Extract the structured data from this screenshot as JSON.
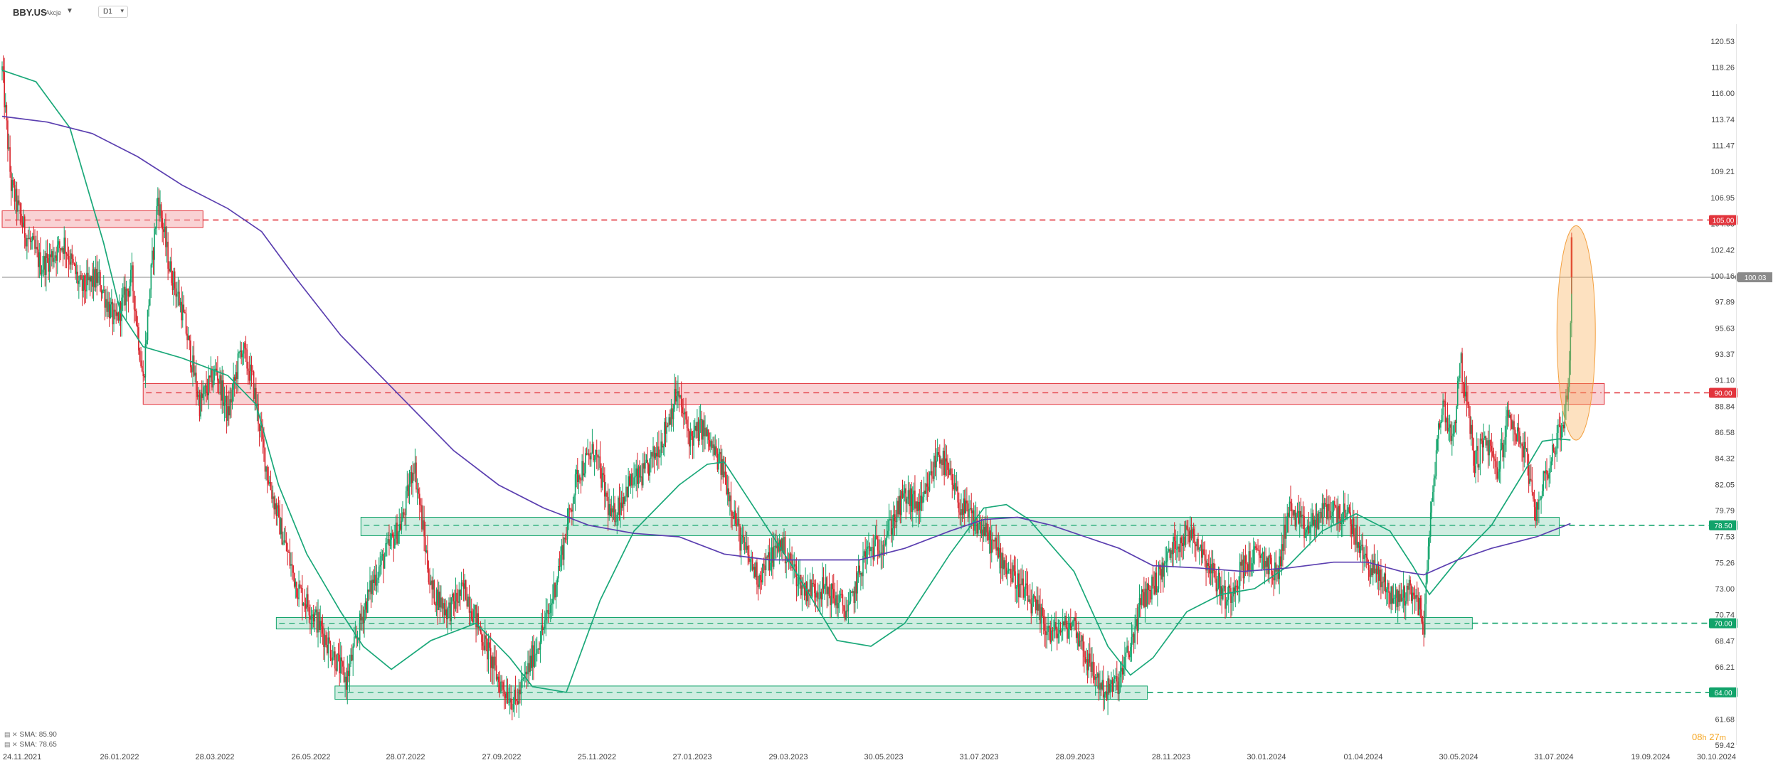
{
  "header": {
    "symbol": "BBY.US",
    "market": "Akcje",
    "timeframe": "D1"
  },
  "indicators": [
    {
      "name": "SMA",
      "value": "85.90",
      "color": "#1aa879"
    },
    {
      "name": "SMA",
      "value": "78.65",
      "color": "#5b3fb0"
    }
  ],
  "timer": {
    "hours": "08",
    "h_unit": "h",
    "minutes": "27",
    "m_unit": "m"
  },
  "chart_data": {
    "type": "candlestick",
    "y_ticks": [
      "120.53",
      "118.26",
      "116.00",
      "113.74",
      "111.47",
      "109.21",
      "106.95",
      "104.68",
      "102.42",
      "100.16",
      "97.89",
      "95.63",
      "93.37",
      "91.10",
      "88.84",
      "86.58",
      "84.32",
      "82.05",
      "79.79",
      "77.53",
      "75.26",
      "73.00",
      "70.74",
      "68.47",
      "66.21",
      "63.95",
      "61.68",
      "59.42"
    ],
    "x_ticks": [
      "24.11.2021",
      "26.01.2022",
      "28.03.2022",
      "26.05.2022",
      "28.07.2022",
      "27.09.2022",
      "25.11.2022",
      "27.01.2023",
      "29.03.2023",
      "30.05.2023",
      "31.07.2023",
      "28.09.2023",
      "28.11.2023",
      "30.01.2024",
      "01.04.2024",
      "30.05.2024",
      "31.07.2024",
      "19.09.2024",
      "30.10.2024"
    ],
    "ylim": [
      59.42,
      122.0
    ],
    "price_anchors": [
      [
        0,
        118
      ],
      [
        8,
        108
      ],
      [
        20,
        104
      ],
      [
        35,
        101
      ],
      [
        55,
        103
      ],
      [
        70,
        99
      ],
      [
        85,
        100
      ],
      [
        100,
        96
      ],
      [
        115,
        100
      ],
      [
        125,
        91
      ],
      [
        130,
        98
      ],
      [
        138,
        107
      ],
      [
        148,
        101
      ],
      [
        160,
        97
      ],
      [
        175,
        89
      ],
      [
        190,
        92
      ],
      [
        200,
        88
      ],
      [
        212,
        94
      ],
      [
        222,
        91
      ],
      [
        235,
        83
      ],
      [
        250,
        77
      ],
      [
        262,
        73
      ],
      [
        275,
        71
      ],
      [
        290,
        68
      ],
      [
        305,
        65
      ],
      [
        320,
        71
      ],
      [
        330,
        74
      ],
      [
        340,
        76
      ],
      [
        355,
        79
      ],
      [
        365,
        84
      ],
      [
        380,
        73
      ],
      [
        395,
        71
      ],
      [
        410,
        73
      ],
      [
        425,
        69
      ],
      [
        440,
        65
      ],
      [
        455,
        63
      ],
      [
        470,
        67
      ],
      [
        485,
        71
      ],
      [
        500,
        78
      ],
      [
        510,
        83
      ],
      [
        525,
        85
      ],
      [
        540,
        79
      ],
      [
        555,
        82
      ],
      [
        570,
        83
      ],
      [
        585,
        86
      ],
      [
        598,
        90
      ],
      [
        610,
        86
      ],
      [
        620,
        87
      ],
      [
        640,
        83
      ],
      [
        655,
        77
      ],
      [
        670,
        74
      ],
      [
        690,
        77
      ],
      [
        710,
        73
      ],
      [
        730,
        73
      ],
      [
        750,
        71
      ],
      [
        765,
        76
      ],
      [
        780,
        77
      ],
      [
        800,
        81
      ],
      [
        815,
        80
      ],
      [
        830,
        85
      ],
      [
        850,
        80
      ],
      [
        870,
        78
      ],
      [
        890,
        75
      ],
      [
        910,
        72
      ],
      [
        930,
        69
      ],
      [
        950,
        70
      ],
      [
        965,
        66
      ],
      [
        978,
        64
      ],
      [
        990,
        65
      ],
      [
        1000,
        68
      ],
      [
        1010,
        72
      ],
      [
        1025,
        74
      ],
      [
        1040,
        77
      ],
      [
        1055,
        78
      ],
      [
        1070,
        75
      ],
      [
        1085,
        72
      ],
      [
        1100,
        75
      ],
      [
        1115,
        76
      ],
      [
        1130,
        74
      ],
      [
        1140,
        80
      ],
      [
        1155,
        78
      ],
      [
        1175,
        80
      ],
      [
        1195,
        79
      ],
      [
        1205,
        76
      ],
      [
        1220,
        74
      ],
      [
        1235,
        72
      ],
      [
        1250,
        73
      ],
      [
        1260,
        70
      ],
      [
        1268,
        82
      ],
      [
        1276,
        89
      ],
      [
        1286,
        86
      ],
      [
        1292,
        93
      ],
      [
        1298,
        89
      ],
      [
        1305,
        84
      ],
      [
        1315,
        86
      ],
      [
        1325,
        83
      ],
      [
        1335,
        88
      ],
      [
        1345,
        86
      ],
      [
        1352,
        84
      ],
      [
        1358,
        79
      ],
      [
        1365,
        82
      ],
      [
        1375,
        85
      ],
      [
        1382,
        87
      ],
      [
        1388,
        90
      ],
      [
        1391,
        100
      ]
    ],
    "series": [
      {
        "name": "SMA",
        "value": "85.90",
        "color": "#1aa879",
        "points": [
          [
            0,
            118
          ],
          [
            30,
            117
          ],
          [
            60,
            113
          ],
          [
            90,
            103
          ],
          [
            105,
            97
          ],
          [
            125,
            94
          ],
          [
            160,
            93
          ],
          [
            200,
            91.5
          ],
          [
            225,
            89
          ],
          [
            245,
            82
          ],
          [
            270,
            76
          ],
          [
            300,
            71
          ],
          [
            320,
            68
          ],
          [
            345,
            66
          ],
          [
            380,
            68.5
          ],
          [
            420,
            70
          ],
          [
            450,
            67
          ],
          [
            470,
            64.5
          ],
          [
            500,
            64
          ],
          [
            530,
            72
          ],
          [
            560,
            78
          ],
          [
            600,
            82
          ],
          [
            625,
            83.8
          ],
          [
            640,
            84
          ],
          [
            660,
            81
          ],
          [
            700,
            75
          ],
          [
            740,
            68.5
          ],
          [
            770,
            68
          ],
          [
            800,
            70
          ],
          [
            840,
            76
          ],
          [
            870,
            80
          ],
          [
            890,
            80.3
          ],
          [
            910,
            79
          ],
          [
            950,
            74.5
          ],
          [
            980,
            68
          ],
          [
            1000,
            65.5
          ],
          [
            1020,
            67
          ],
          [
            1050,
            71
          ],
          [
            1080,
            72.5
          ],
          [
            1110,
            73
          ],
          [
            1140,
            75
          ],
          [
            1170,
            78
          ],
          [
            1200,
            79.5
          ],
          [
            1230,
            78
          ],
          [
            1250,
            75
          ],
          [
            1265,
            72.5
          ],
          [
            1290,
            75.5
          ],
          [
            1320,
            78.5
          ],
          [
            1345,
            82.5
          ],
          [
            1365,
            85.8
          ],
          [
            1380,
            86
          ],
          [
            1390,
            85.9
          ]
        ]
      },
      {
        "name": "SMA",
        "value": "78.65",
        "color": "#5b3fb0",
        "points": [
          [
            0,
            114
          ],
          [
            40,
            113.5
          ],
          [
            80,
            112.5
          ],
          [
            120,
            110.5
          ],
          [
            160,
            108
          ],
          [
            200,
            106
          ],
          [
            230,
            104
          ],
          [
            260,
            100
          ],
          [
            300,
            95
          ],
          [
            340,
            91
          ],
          [
            380,
            87
          ],
          [
            400,
            85
          ],
          [
            440,
            82
          ],
          [
            480,
            80
          ],
          [
            520,
            78.5
          ],
          [
            560,
            77.8
          ],
          [
            600,
            77.5
          ],
          [
            640,
            76
          ],
          [
            680,
            75.5
          ],
          [
            720,
            75.5
          ],
          [
            760,
            75.5
          ],
          [
            800,
            76.5
          ],
          [
            840,
            78
          ],
          [
            870,
            79
          ],
          [
            900,
            79.2
          ],
          [
            930,
            78.5
          ],
          [
            960,
            77.5
          ],
          [
            990,
            76.5
          ],
          [
            1020,
            75
          ],
          [
            1060,
            74.8
          ],
          [
            1100,
            74.5
          ],
          [
            1140,
            74.8
          ],
          [
            1180,
            75.3
          ],
          [
            1210,
            75.3
          ],
          [
            1240,
            74.5
          ],
          [
            1260,
            74.2
          ],
          [
            1290,
            75.5
          ],
          [
            1320,
            76.5
          ],
          [
            1360,
            77.5
          ],
          [
            1390,
            78.65
          ]
        ]
      }
    ],
    "zones": [
      {
        "kind": "resistance",
        "color": "#e2343c",
        "x1": 0,
        "x2": 178,
        "y1": 104.35,
        "y2": 105.8
      },
      {
        "kind": "resistance",
        "color": "#e2343c",
        "x1": 125,
        "x2": 1420,
        "y1": 89.0,
        "y2": 90.8
      },
      {
        "kind": "support",
        "color": "#11a36a",
        "x1": 318,
        "x2": 1380,
        "y1": 77.6,
        "y2": 79.2
      },
      {
        "kind": "support",
        "color": "#11a36a",
        "x1": 243,
        "x2": 1303,
        "y1": 69.5,
        "y2": 70.5
      },
      {
        "kind": "support",
        "color": "#11a36a",
        "x1": 295,
        "x2": 1015,
        "y1": 63.4,
        "y2": 64.55
      }
    ],
    "levels": [
      {
        "value": 105.0,
        "label": "105.00",
        "color": "#e2343c",
        "style": "dashed",
        "from_x": 178
      },
      {
        "value": 100.03,
        "label": "100.03",
        "color": "#8a8a8a",
        "style": "solid",
        "from_x": 0
      },
      {
        "value": 90.0,
        "label": "90.00",
        "color": "#e2343c",
        "style": "dashed",
        "from_x": 1420
      },
      {
        "value": 78.5,
        "label": "78.50",
        "color": "#11a36a",
        "style": "dashed",
        "from_x": 1380
      },
      {
        "value": 70.0,
        "label": "70.00",
        "color": "#11a36a",
        "style": "dashed",
        "from_x": 1303
      },
      {
        "value": 64.0,
        "label": "64.00",
        "color": "#11a36a",
        "style": "dashed",
        "from_x": 1015
      }
    ],
    "highlight": {
      "color": "#f8a94a",
      "cx": 1395,
      "cy_value": 95.2,
      "rx_value": 27,
      "ry_value": 9.3
    },
    "candle_colors": {
      "up": "#11a36a",
      "down": "#d8222a"
    }
  }
}
